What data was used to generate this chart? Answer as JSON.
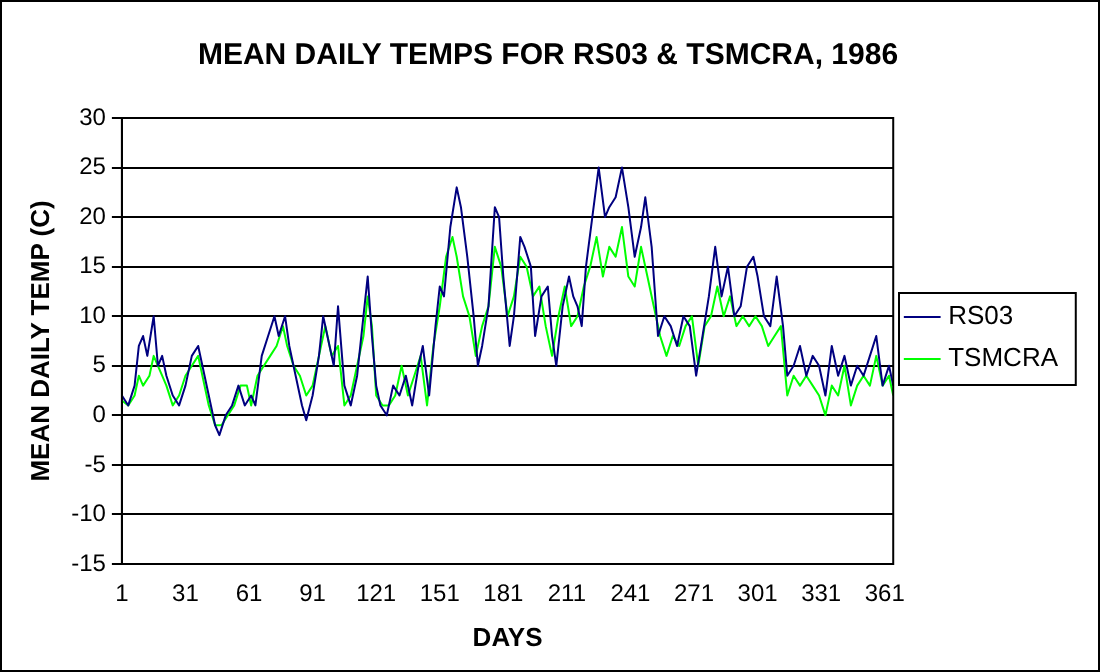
{
  "chart_data": {
    "type": "line",
    "title": "MEAN DAILY TEMPS FOR RS03 & TSMCRA, 1986",
    "xlabel": "DAYS",
    "ylabel": "MEAN DAILY TEMP (C)",
    "xlim": [
      1,
      365
    ],
    "xticks": [
      1,
      31,
      61,
      91,
      121,
      151,
      181,
      211,
      241,
      271,
      301,
      331,
      361
    ],
    "ylim": [
      -15,
      30
    ],
    "yticks": [
      -15,
      -10,
      -5,
      0,
      5,
      10,
      15,
      20,
      25,
      30
    ],
    "grid": "y",
    "legend": "right",
    "marker": "none",
    "line_style": "solid",
    "series": [
      {
        "name": "RS03",
        "color": "#000080",
        "x": [
          1,
          4,
          7,
          9,
          11,
          13,
          16,
          18,
          20,
          22,
          25,
          28,
          31,
          34,
          37,
          39,
          42,
          45,
          47,
          50,
          53,
          56,
          59,
          62,
          64,
          67,
          70,
          73,
          75,
          78,
          80,
          83,
          86,
          88,
          91,
          94,
          96,
          99,
          101,
          103,
          106,
          109,
          112,
          115,
          117,
          119,
          121,
          123,
          126,
          129,
          132,
          135,
          138,
          141,
          143,
          146,
          149,
          151,
          153,
          156,
          159,
          161,
          164,
          167,
          169,
          171,
          174,
          177,
          179,
          181,
          184,
          186,
          189,
          191,
          194,
          196,
          199,
          202,
          204,
          206,
          209,
          212,
          214,
          216,
          218,
          220,
          223,
          226,
          229,
          231,
          234,
          237,
          240,
          243,
          246,
          248,
          251,
          254,
          257,
          260,
          263,
          266,
          269,
          272,
          275,
          278,
          281,
          284,
          287,
          290,
          293,
          296,
          299,
          301,
          304,
          307,
          310,
          313,
          315,
          318,
          321,
          324,
          327,
          330,
          333,
          336,
          339,
          342,
          345,
          348,
          351,
          354,
          357,
          360,
          363,
          365
        ],
        "values": [
          2,
          1,
          3,
          7,
          8,
          6,
          10,
          5,
          6,
          4,
          2,
          1,
          3,
          6,
          7,
          5,
          2,
          -1,
          -2,
          0,
          1,
          3,
          1,
          2,
          1,
          6,
          8,
          10,
          8,
          10,
          7,
          4,
          1,
          -0.5,
          2,
          6,
          10,
          7,
          5,
          11,
          3,
          1,
          4,
          10,
          14,
          8,
          3,
          1,
          0,
          3,
          2,
          4,
          1,
          5,
          7,
          2,
          9,
          13,
          12,
          19,
          23,
          21,
          16,
          10,
          5,
          7,
          11,
          21,
          20,
          14,
          7,
          10,
          18,
          17,
          15,
          8,
          12,
          13,
          8,
          5,
          11,
          14,
          12,
          11,
          9,
          15,
          20,
          25,
          20,
          21,
          22,
          25,
          21,
          16,
          19,
          22,
          17,
          8,
          10,
          9,
          7,
          10,
          9,
          4,
          8,
          12,
          17,
          12,
          15,
          10,
          11,
          15,
          16,
          14,
          10,
          9,
          14,
          9,
          4,
          5,
          7,
          4,
          6,
          5,
          2,
          7,
          4,
          6,
          3,
          5,
          4,
          6,
          8,
          3,
          5,
          3
        ]
      },
      {
        "name": "TSMCRA",
        "color": "#00ff00",
        "x": [
          1,
          4,
          7,
          9,
          11,
          14,
          16,
          18,
          20,
          22,
          25,
          28,
          31,
          34,
          37,
          39,
          42,
          45,
          48,
          51,
          54,
          57,
          60,
          62,
          65,
          68,
          71,
          74,
          77,
          79,
          82,
          85,
          88,
          91,
          94,
          97,
          100,
          103,
          106,
          109,
          112,
          115,
          117,
          119,
          121,
          124,
          127,
          130,
          133,
          136,
          139,
          142,
          145,
          148,
          151,
          154,
          157,
          159,
          162,
          165,
          168,
          171,
          174,
          177,
          180,
          183,
          186,
          189,
          192,
          195,
          198,
          201,
          204,
          207,
          210,
          213,
          216,
          219,
          222,
          225,
          228,
          231,
          234,
          237,
          240,
          243,
          246,
          249,
          252,
          255,
          258,
          261,
          264,
          267,
          270,
          273,
          276,
          279,
          282,
          285,
          288,
          291,
          294,
          297,
          300,
          303,
          306,
          309,
          312,
          315,
          318,
          321,
          324,
          327,
          330,
          333,
          336,
          339,
          342,
          345,
          348,
          351,
          354,
          357,
          360,
          363,
          365
        ],
        "values": [
          1.5,
          1,
          2,
          4,
          3,
          4,
          6,
          5,
          4,
          3,
          1,
          2,
          4,
          5,
          6,
          4,
          1,
          -1,
          -1,
          0,
          1,
          3,
          3,
          1,
          4,
          5,
          6,
          7,
          9,
          7,
          5,
          4,
          2,
          3,
          6,
          9,
          6,
          7,
          1,
          2,
          5,
          8,
          12,
          9,
          2,
          1,
          1,
          2,
          5,
          2,
          4,
          6,
          1,
          7,
          11,
          16,
          18,
          16,
          12,
          10,
          6,
          9,
          11,
          17,
          15,
          10,
          12,
          16,
          15,
          12,
          13,
          9,
          6,
          10,
          13,
          9,
          10,
          13,
          15,
          18,
          14,
          17,
          16,
          19,
          14,
          13,
          17,
          14,
          11,
          8,
          6,
          8,
          7,
          9,
          10,
          5,
          9,
          10,
          13,
          10,
          12,
          9,
          10,
          9,
          10,
          9,
          7,
          8,
          9,
          2,
          4,
          3,
          4,
          3,
          2,
          0,
          3,
          2,
          5,
          1,
          3,
          4,
          3,
          6,
          3,
          4,
          2
        ]
      }
    ]
  }
}
